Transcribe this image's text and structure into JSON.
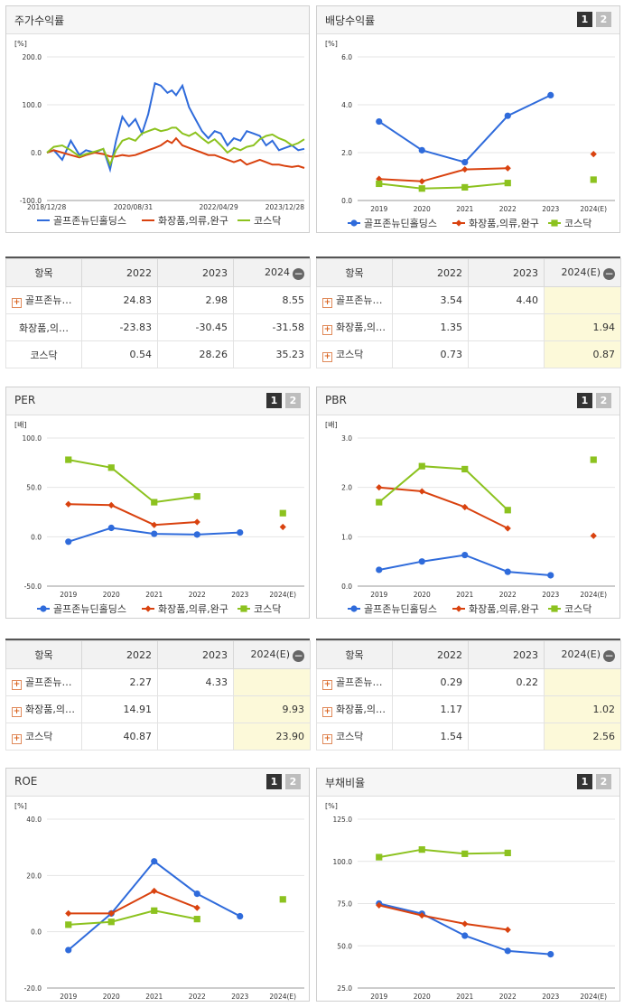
{
  "panels": [
    {
      "title": "주가수익률",
      "has_buttons": false,
      "unit": "[%]",
      "chart_data": {
        "type": "line",
        "title": "주가수익률",
        "ylabel": "[%]",
        "ylim": [
          -100,
          200
        ],
        "yticks": [
          "200.0",
          "100.0",
          "0.0",
          "-100.0"
        ],
        "xticks": [
          "2018/12/28",
          "2020/08/31",
          "2022/04/29",
          "2023/12/28"
        ],
        "x_range": [
          "2018-12-28",
          "2023-12-28"
        ],
        "series": [
          {
            "name": "골프존뉴딘홀딩스",
            "color": "#2f6bdb",
            "x": [
              "2018-12-28",
              "2019-02-15",
              "2019-04-15",
              "2019-06-15",
              "2019-08-15",
              "2019-10-01",
              "2019-12-01",
              "2020-02-01",
              "2020-03-20",
              "2020-05-01",
              "2020-06-15",
              "2020-08-01",
              "2020-09-15",
              "2020-11-01",
              "2020-12-15",
              "2021-02-01",
              "2021-03-15",
              "2021-05-01",
              "2021-06-01",
              "2021-07-01",
              "2021-08-15",
              "2021-10-01",
              "2021-11-15",
              "2022-01-01",
              "2022-02-15",
              "2022-04-01",
              "2022-05-15",
              "2022-07-01",
              "2022-08-15",
              "2022-10-01",
              "2022-11-15",
              "2023-01-01",
              "2023-02-15",
              "2023-04-01",
              "2023-05-15",
              "2023-07-01",
              "2023-08-15",
              "2023-10-01",
              "2023-11-15",
              "2023-12-28"
            ],
            "values": [
              0,
              5,
              -15,
              25,
              -5,
              5,
              0,
              8,
              -35,
              25,
              75,
              55,
              70,
              40,
              80,
              145,
              140,
              125,
              130,
              120,
              140,
              95,
              70,
              45,
              30,
              45,
              40,
              15,
              30,
              25,
              45,
              40,
              35,
              15,
              25,
              5,
              10,
              15,
              5,
              8
            ]
          },
          {
            "name": "화장품,의류,완구",
            "color": "#d9420f",
            "x": [
              "2018-12-28",
              "2019-02-15",
              "2019-04-15",
              "2019-06-15",
              "2019-08-15",
              "2019-10-01",
              "2019-12-01",
              "2020-02-01",
              "2020-03-20",
              "2020-05-01",
              "2020-06-15",
              "2020-08-01",
              "2020-09-15",
              "2020-11-01",
              "2020-12-15",
              "2021-02-01",
              "2021-03-15",
              "2021-05-01",
              "2021-06-01",
              "2021-07-01",
              "2021-08-15",
              "2021-10-01",
              "2021-11-15",
              "2022-01-01",
              "2022-02-15",
              "2022-04-01",
              "2022-05-15",
              "2022-07-01",
              "2022-08-15",
              "2022-10-01",
              "2022-11-15",
              "2023-01-01",
              "2023-02-15",
              "2023-04-01",
              "2023-05-15",
              "2023-07-01",
              "2023-08-15",
              "2023-10-01",
              "2023-11-15",
              "2023-12-28"
            ],
            "values": [
              0,
              5,
              0,
              -5,
              -10,
              -5,
              0,
              -3,
              -8,
              -8,
              -5,
              -7,
              -5,
              0,
              5,
              10,
              15,
              25,
              20,
              30,
              15,
              10,
              5,
              0,
              -5,
              -5,
              -10,
              -15,
              -20,
              -15,
              -25,
              -20,
              -15,
              -20,
              -25,
              -25,
              -28,
              -30,
              -28,
              -32
            ]
          },
          {
            "name": "코스닥",
            "color": "#8cc21f",
            "x": [
              "2018-12-28",
              "2019-02-15",
              "2019-04-15",
              "2019-06-15",
              "2019-08-15",
              "2019-10-01",
              "2019-12-01",
              "2020-02-01",
              "2020-03-20",
              "2020-05-01",
              "2020-06-15",
              "2020-08-01",
              "2020-09-15",
              "2020-11-01",
              "2020-12-15",
              "2021-02-01",
              "2021-03-15",
              "2021-05-01",
              "2021-06-01",
              "2021-07-01",
              "2021-08-15",
              "2021-10-01",
              "2021-11-15",
              "2022-01-01",
              "2022-02-15",
              "2022-04-01",
              "2022-05-15",
              "2022-07-01",
              "2022-08-15",
              "2022-10-01",
              "2022-11-15",
              "2023-01-01",
              "2023-02-15",
              "2023-04-01",
              "2023-05-15",
              "2023-07-01",
              "2023-08-15",
              "2023-10-01",
              "2023-11-15",
              "2023-12-28"
            ],
            "values": [
              0,
              12,
              15,
              5,
              -8,
              -3,
              2,
              8,
              -25,
              5,
              25,
              30,
              25,
              40,
              45,
              50,
              45,
              48,
              52,
              52,
              40,
              35,
              42,
              30,
              20,
              28,
              15,
              0,
              10,
              5,
              12,
              15,
              28,
              35,
              38,
              30,
              25,
              15,
              20,
              28
            ]
          }
        ]
      }
    },
    {
      "title": "배당수익률",
      "has_buttons": true,
      "unit": "[%]",
      "chart_data": {
        "type": "line",
        "title": "배당수익률",
        "ylabel": "[%]",
        "ylim": [
          0,
          6
        ],
        "yticks": [
          "6.0",
          "4.0",
          "2.0",
          "0.0"
        ],
        "categories": [
          "2019",
          "2020",
          "2021",
          "2022",
          "2023",
          "2024(E)"
        ],
        "series": [
          {
            "name": "골프존뉴딘홀딩스",
            "color": "#2f6bdb",
            "marker": "circle",
            "values": [
              3.3,
              2.1,
              1.6,
              3.54,
              4.4,
              null
            ]
          },
          {
            "name": "화장품,의류,완구",
            "color": "#d9420f",
            "marker": "diamond",
            "values": [
              0.9,
              0.8,
              1.3,
              1.35,
              null,
              1.94
            ]
          },
          {
            "name": "코스닥",
            "color": "#8cc21f",
            "marker": "square",
            "values": [
              0.7,
              0.5,
              0.55,
              0.73,
              null,
              0.87
            ]
          }
        ]
      }
    },
    {
      "title": "PER",
      "has_buttons": true,
      "unit": "[배]",
      "chart_data": {
        "type": "line",
        "title": "PER",
        "ylabel": "[배]",
        "ylim": [
          -50,
          100
        ],
        "yticks": [
          "100.0",
          "50.0",
          "0.0",
          "-50.0"
        ],
        "categories": [
          "2019",
          "2020",
          "2021",
          "2022",
          "2023",
          "2024(E)"
        ],
        "series": [
          {
            "name": "골프존뉴딘홀딩스",
            "color": "#2f6bdb",
            "marker": "circle",
            "values": [
              -5,
              9,
              3,
              2.27,
              4.33,
              null
            ]
          },
          {
            "name": "화장품,의류,완구",
            "color": "#d9420f",
            "marker": "diamond",
            "values": [
              33,
              32,
              12,
              14.91,
              null,
              9.93
            ]
          },
          {
            "name": "코스닥",
            "color": "#8cc21f",
            "marker": "square",
            "values": [
              78,
              70,
              35,
              40.87,
              null,
              23.9
            ]
          }
        ]
      }
    },
    {
      "title": "PBR",
      "has_buttons": true,
      "unit": "[배]",
      "chart_data": {
        "type": "line",
        "title": "PBR",
        "ylabel": "[배]",
        "ylim": [
          0,
          3
        ],
        "yticks": [
          "3.0",
          "2.0",
          "1.0",
          "0.0"
        ],
        "categories": [
          "2019",
          "2020",
          "2021",
          "2022",
          "2023",
          "2024(E)"
        ],
        "series": [
          {
            "name": "골프존뉴딘홀딩스",
            "color": "#2f6bdb",
            "marker": "circle",
            "values": [
              0.33,
              0.5,
              0.63,
              0.29,
              0.22,
              null
            ]
          },
          {
            "name": "화장품,의류,완구",
            "color": "#d9420f",
            "marker": "diamond",
            "values": [
              2.0,
              1.92,
              1.6,
              1.17,
              null,
              1.02
            ]
          },
          {
            "name": "코스닥",
            "color": "#8cc21f",
            "marker": "square",
            "values": [
              1.7,
              2.43,
              2.37,
              1.54,
              null,
              2.56
            ]
          }
        ]
      }
    },
    {
      "title": "ROE",
      "has_buttons": true,
      "unit": "[%]",
      "chart_data": {
        "type": "line",
        "title": "ROE",
        "ylabel": "[%]",
        "ylim": [
          -20,
          40
        ],
        "yticks": [
          "40.0",
          "20.0",
          "0.0",
          "-20.0"
        ],
        "categories": [
          "2019",
          "2020",
          "2021",
          "2022",
          "2023",
          "2024(E)"
        ],
        "series": [
          {
            "name": "골프존뉴딘홀딩스",
            "color": "#2f6bdb",
            "marker": "circle",
            "values": [
              -6.5,
              6.5,
              25,
              13.5,
              5.5,
              null
            ]
          },
          {
            "name": "화장품,의류,완구",
            "color": "#d9420f",
            "marker": "diamond",
            "values": [
              6.5,
              6.5,
              14.5,
              8.5,
              null,
              null
            ]
          },
          {
            "name": "코스닥",
            "color": "#8cc21f",
            "marker": "square",
            "values": [
              2.5,
              3.5,
              7.5,
              4.5,
              null,
              11.5
            ]
          }
        ]
      }
    },
    {
      "title": "부채비율",
      "has_buttons": true,
      "unit": "[%]",
      "chart_data": {
        "type": "line",
        "title": "부채비율",
        "ylabel": "[%]",
        "ylim": [
          25,
          125
        ],
        "yticks": [
          "125.0",
          "100.0",
          "75.0",
          "50.0",
          "25.0"
        ],
        "categories": [
          "2019",
          "2020",
          "2021",
          "2022",
          "2023",
          "2024(E)"
        ],
        "series": [
          {
            "name": "골프존뉴딘홀딩스",
            "color": "#2f6bdb",
            "marker": "circle",
            "values": [
              75,
              69,
              56,
              47,
              45,
              null
            ]
          },
          {
            "name": "화장품,의류,완구",
            "color": "#d9420f",
            "marker": "diamond",
            "values": [
              74,
              68,
              63,
              59.5,
              null,
              null
            ]
          },
          {
            "name": "코스닥",
            "color": "#8cc21f",
            "marker": "square",
            "values": [
              102.5,
              107,
              104.5,
              105,
              null,
              null
            ]
          }
        ]
      }
    }
  ],
  "buttons": {
    "b1": "1",
    "b2": "2"
  },
  "tables": [
    {
      "header": [
        "항목",
        "2022",
        "2023",
        "2024"
      ],
      "header_last_has_minus": true,
      "minus_glyph": "−",
      "highlight_last": false,
      "rows": [
        {
          "name": "골프존뉴…",
          "plus": true,
          "cells": [
            "24.83",
            "2.98",
            "8.55"
          ]
        },
        {
          "name": "화장품,의…",
          "plus": false,
          "cells": [
            "-23.83",
            "-30.45",
            "-31.58"
          ]
        },
        {
          "name": "코스닥",
          "plus": false,
          "cells": [
            "0.54",
            "28.26",
            "35.23"
          ]
        }
      ]
    },
    {
      "header": [
        "항목",
        "2022",
        "2023",
        "2024(E)"
      ],
      "header_last_has_minus": true,
      "minus_glyph": "−",
      "highlight_last": true,
      "rows": [
        {
          "name": "골프존뉴…",
          "plus": true,
          "cells": [
            "3.54",
            "4.40",
            ""
          ]
        },
        {
          "name": "화장품,의…",
          "plus": true,
          "cells": [
            "1.35",
            "",
            "1.94"
          ]
        },
        {
          "name": "코스닥",
          "plus": true,
          "cells": [
            "0.73",
            "",
            "0.87"
          ]
        }
      ]
    },
    {
      "header": [
        "항목",
        "2022",
        "2023",
        "2024(E)"
      ],
      "header_last_has_minus": true,
      "minus_glyph": "−",
      "highlight_last": true,
      "rows": [
        {
          "name": "골프존뉴…",
          "plus": true,
          "cells": [
            "2.27",
            "4.33",
            ""
          ]
        },
        {
          "name": "화장품,의…",
          "plus": true,
          "cells": [
            "14.91",
            "",
            "9.93"
          ]
        },
        {
          "name": "코스닥",
          "plus": true,
          "cells": [
            "40.87",
            "",
            "23.90"
          ]
        }
      ]
    },
    {
      "header": [
        "항목",
        "2022",
        "2023",
        "2024(E)"
      ],
      "header_last_has_minus": true,
      "minus_glyph": "−",
      "highlight_last": true,
      "rows": [
        {
          "name": "골프존뉴…",
          "plus": true,
          "cells": [
            "0.29",
            "0.22",
            ""
          ]
        },
        {
          "name": "화장품,의…",
          "plus": true,
          "cells": [
            "1.17",
            "",
            "1.02"
          ]
        },
        {
          "name": "코스닥",
          "plus": true,
          "cells": [
            "1.54",
            "",
            "2.56"
          ]
        }
      ]
    }
  ],
  "plus_glyph": "+",
  "legend": {
    "items": [
      {
        "name": "골프존뉴딘홀딩스",
        "color": "#2f6bdb"
      },
      {
        "name": "화장품,의류,완구",
        "color": "#d9420f"
      },
      {
        "name": "코스닥",
        "color": "#8cc21f"
      }
    ]
  }
}
